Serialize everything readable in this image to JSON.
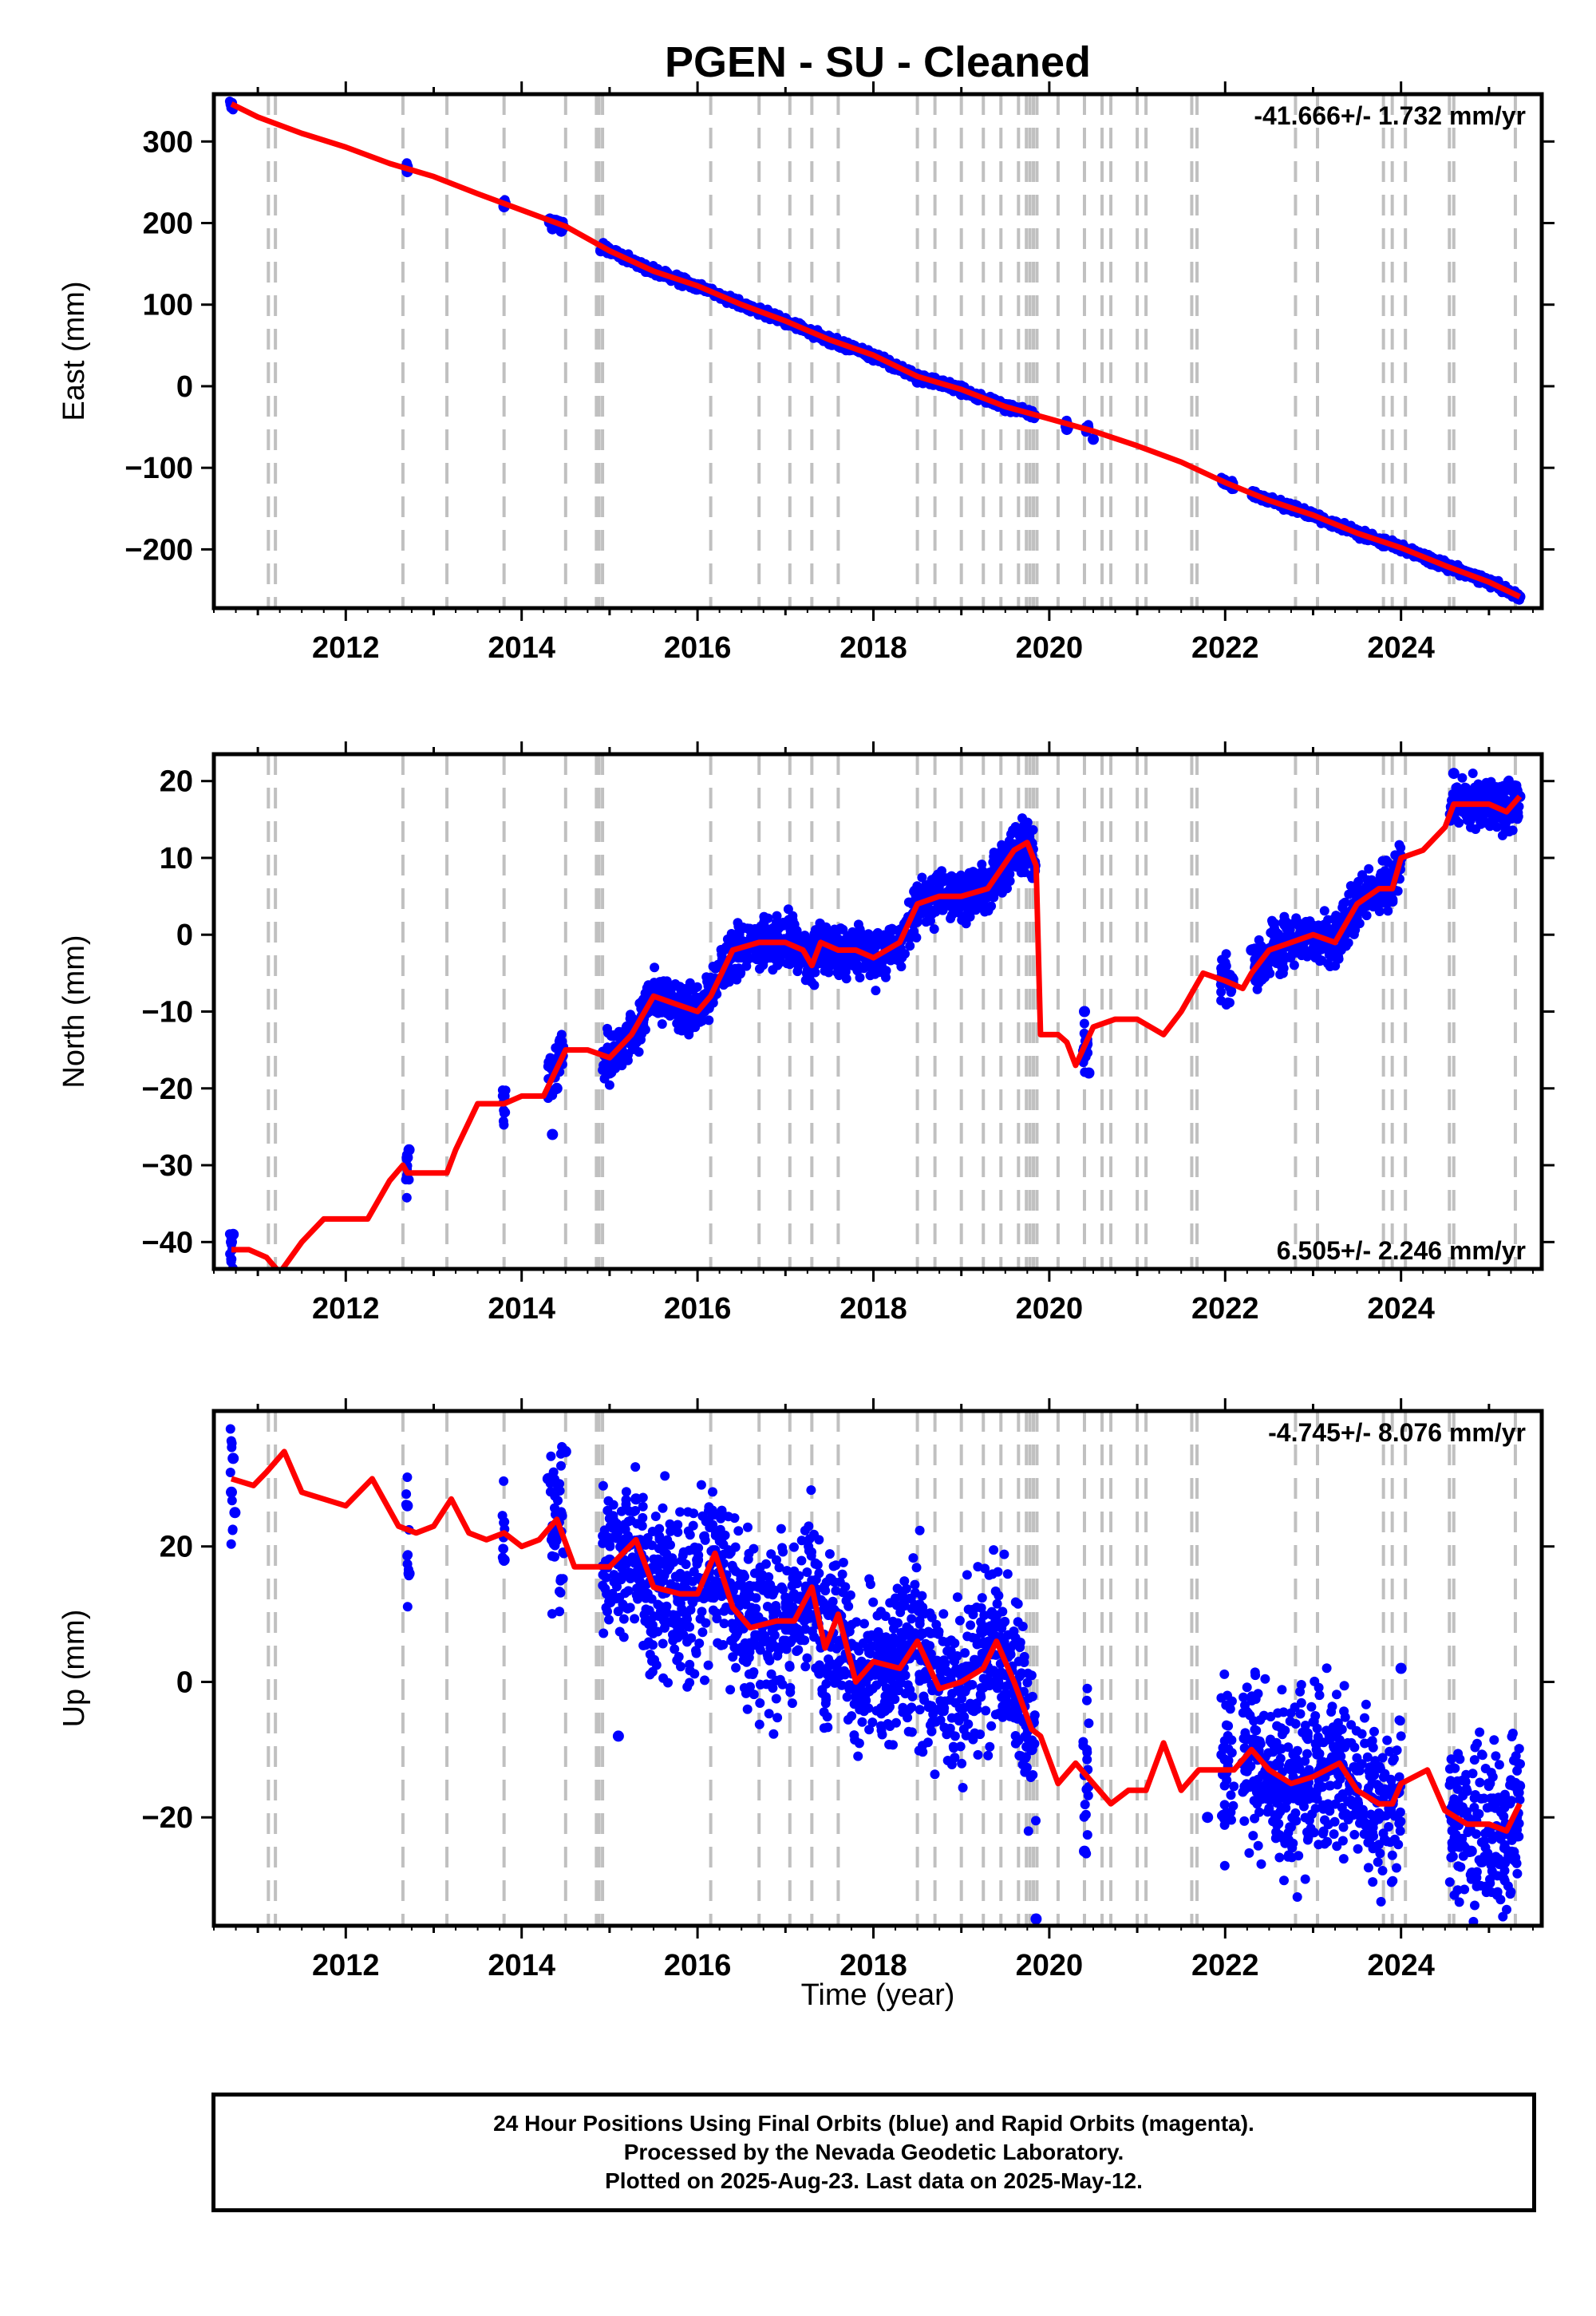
{
  "title": "PGEN  - SU - Cleaned",
  "x_axis_label": "Time (year)",
  "footer": {
    "line1": "24 Hour Positions Using Final Orbits (blue) and Rapid Orbits (magenta).",
    "line2": "Processed by the Nevada Geodetic Laboratory.",
    "line3": "Plotted on 2025-Aug-23. Last data on 2025-May-12."
  },
  "colors": {
    "data": "#0000ff",
    "fit": "#ff0000",
    "steps": "#c0c0c0",
    "axis": "#000000"
  },
  "chart_data": [
    {
      "type": "scatter",
      "component": "east",
      "ylabel": "East (mm)",
      "rate_label": "-41.666+/- 1.732 mm/yr",
      "xlim": [
        2010.5,
        2025.6
      ],
      "ylim": [
        -272,
        358
      ],
      "xticks": [
        2012,
        2014,
        2016,
        2018,
        2020,
        2022,
        2024
      ],
      "yticks": [
        -200,
        -100,
        0,
        100,
        200,
        300
      ],
      "ytick_labels": [
        "−200",
        "−100",
        "0",
        "100",
        "200",
        "300"
      ],
      "grid": false,
      "series": [
        {
          "role": "observed",
          "x": [
            2010.7,
            2012.7,
            2013.8,
            2014.35,
            2014.45,
            2014.9,
            2015.0,
            2015.5,
            2016.0,
            2016.5,
            2017.0,
            2017.5,
            2018.0,
            2018.5,
            2019.0,
            2019.5,
            2020.2,
            2020.5,
            2022.0,
            2022.5,
            2023.0,
            2023.5,
            2024.0,
            2024.5,
            2025.0,
            2025.35
          ],
          "y": [
            346,
            263,
            220,
            193,
            190,
            166,
            164,
            140,
            120,
            97,
            77,
            52,
            32,
            5,
            -10,
            -30,
            -53,
            -65,
            -120,
            -140,
            -160,
            -183,
            -202,
            -222,
            -240,
            -258
          ]
        },
        {
          "role": "model",
          "x": [
            2010.7,
            2011.0,
            2011.5,
            2012.0,
            2012.5,
            2013.0,
            2013.5,
            2014.0,
            2014.5,
            2015.0,
            2015.5,
            2016.0,
            2016.5,
            2017.0,
            2017.5,
            2018.0,
            2018.5,
            2019.0,
            2019.5,
            2020.0,
            2020.5,
            2021.0,
            2021.5,
            2022.0,
            2022.5,
            2023.0,
            2023.5,
            2024.0,
            2024.5,
            2025.0,
            2025.35
          ],
          "y": [
            346,
            330,
            310,
            293,
            273,
            257,
            236,
            216,
            196,
            166,
            141,
            123,
            100,
            80,
            57,
            38,
            12,
            -4,
            -25,
            -40,
            -55,
            -73,
            -93,
            -118,
            -140,
            -158,
            -180,
            -198,
            -220,
            -240,
            -258
          ]
        }
      ]
    },
    {
      "type": "scatter",
      "component": "north",
      "ylabel": "North (mm)",
      "rate_label": "6.505+/- 2.246 mm/yr",
      "xlim": [
        2010.5,
        2025.6
      ],
      "ylim": [
        -43.5,
        23.5
      ],
      "xticks": [
        2012,
        2014,
        2016,
        2018,
        2020,
        2022,
        2024
      ],
      "yticks": [
        -40,
        -30,
        -20,
        -10,
        0,
        10,
        20
      ],
      "ytick_labels": [
        "−40",
        "−30",
        "−20",
        "−10",
        "0",
        "10",
        "20"
      ],
      "grid": false,
      "series": [
        {
          "role": "observed",
          "x": [
            2010.7,
            2010.72,
            2012.7,
            2012.72,
            2013.8,
            2014.35,
            2014.4,
            2014.45,
            2015.0,
            2015.2,
            2015.5,
            2016.0,
            2016.5,
            2017.0,
            2017.5,
            2018.0,
            2018.5,
            2019.0,
            2019.5,
            2019.75,
            2020.4,
            2020.45,
            2022.0,
            2022.3,
            2022.6,
            2023.0,
            2023.5,
            2023.9,
            2024.0,
            2024.6,
            2024.7,
            2025.0,
            2025.35
          ],
          "y": [
            -40,
            -39,
            -29,
            -28,
            -21,
            -26,
            -20,
            -16,
            -18,
            -12,
            -7,
            -10,
            -1,
            -2,
            0,
            -2,
            4,
            4,
            7,
            13,
            -10,
            -18,
            -6,
            -2,
            0,
            0,
            4,
            8,
            10,
            21,
            17,
            16,
            18
          ]
        },
        {
          "role": "model",
          "x": [
            2010.7,
            2010.9,
            2011.1,
            2011.25,
            2011.5,
            2011.75,
            2012.0,
            2012.25,
            2012.5,
            2012.65,
            2012.7,
            2013.0,
            2013.15,
            2013.25,
            2013.5,
            2013.8,
            2014.0,
            2014.25,
            2014.5,
            2014.75,
            2015.0,
            2015.25,
            2015.5,
            2015.75,
            2016.0,
            2016.15,
            2016.4,
            2016.7,
            2017.0,
            2017.2,
            2017.3,
            2017.4,
            2017.6,
            2017.8,
            2018.0,
            2018.3,
            2018.5,
            2018.75,
            2019.0,
            2019.3,
            2019.6,
            2019.75,
            2019.85,
            2019.9,
            2020.1,
            2020.2,
            2020.3,
            2020.5,
            2020.75,
            2021.0,
            2021.3,
            2021.5,
            2021.75,
            2022.0,
            2022.2,
            2022.3,
            2022.5,
            2022.75,
            2023.0,
            2023.25,
            2023.5,
            2023.75,
            2023.9,
            2024.0,
            2024.25,
            2024.5,
            2024.6,
            2024.8,
            2025.0,
            2025.2,
            2025.35
          ],
          "y": [
            -41,
            -41,
            -42,
            -44,
            -40,
            -37,
            -37,
            -37,
            -32,
            -30,
            -31,
            -31,
            -31,
            -28,
            -22,
            -22,
            -21,
            -21,
            -15,
            -15,
            -16,
            -13,
            -8,
            -9,
            -10,
            -8,
            -2,
            -1,
            -1,
            -2,
            -4,
            -1,
            -2,
            -2,
            -3,
            -1,
            4,
            5,
            5,
            6,
            11,
            12,
            9,
            -13,
            -13,
            -14,
            -17,
            -12,
            -11,
            -11,
            -13,
            -10,
            -5,
            -6,
            -7,
            -5,
            -2,
            -1,
            0,
            -1,
            4,
            6,
            6,
            10,
            11,
            14,
            17,
            17,
            17,
            16,
            18
          ]
        }
      ]
    },
    {
      "type": "scatter",
      "component": "up",
      "ylabel": "Up (mm)",
      "rate_label": "-4.745+/- 8.076 mm/yr",
      "xlim": [
        2010.5,
        2025.6
      ],
      "ylim": [
        -36,
        40
      ],
      "xticks": [
        2012,
        2014,
        2016,
        2018,
        2020,
        2022,
        2024
      ],
      "yticks": [
        -20,
        0,
        20
      ],
      "ytick_labels": [
        "−20",
        "0",
        "20"
      ],
      "grid": false,
      "series": [
        {
          "role": "observed",
          "x": [
            2010.7,
            2010.72,
            2010.74,
            2012.7,
            2012.72,
            2013.8,
            2014.3,
            2014.4,
            2014.5,
            2015.0,
            2015.1,
            2015.3,
            2015.6,
            2016.0,
            2016.3,
            2016.6,
            2017.0,
            2017.4,
            2017.8,
            2018.2,
            2018.5,
            2018.8,
            2019.2,
            2019.5,
            2019.8,
            2019.85,
            2020.4,
            2021.8,
            2022.2,
            2022.5,
            2023.0,
            2023.5,
            2023.9,
            2024.0,
            2024.6,
            2024.8,
            2025.0,
            2025.3
          ],
          "y": [
            28,
            33,
            25,
            26,
            16,
            18,
            30,
            22,
            34,
            18,
            -8,
            27,
            15,
            18,
            14,
            10,
            6,
            12,
            2,
            5,
            4,
            0,
            3,
            -2,
            -10,
            -35,
            -25,
            -20,
            -12,
            -15,
            -17,
            -13,
            -18,
            2,
            -18,
            -25,
            -22,
            -15
          ]
        },
        {
          "role": "model",
          "x": [
            2010.7,
            2010.95,
            2011.1,
            2011.3,
            2011.5,
            2011.75,
            2012.0,
            2012.3,
            2012.6,
            2012.8,
            2013.0,
            2013.2,
            2013.4,
            2013.6,
            2013.8,
            2014.0,
            2014.2,
            2014.4,
            2014.6,
            2014.8,
            2015.0,
            2015.3,
            2015.5,
            2015.8,
            2016.0,
            2016.2,
            2016.4,
            2016.6,
            2016.9,
            2017.1,
            2017.3,
            2017.45,
            2017.6,
            2017.8,
            2018.0,
            2018.3,
            2018.5,
            2018.75,
            2019.0,
            2019.25,
            2019.4,
            2019.6,
            2019.8,
            2019.9,
            2020.1,
            2020.3,
            2020.5,
            2020.7,
            2020.9,
            2021.1,
            2021.3,
            2021.5,
            2021.7,
            2021.9,
            2022.1,
            2022.3,
            2022.5,
            2022.75,
            2023.0,
            2023.3,
            2023.5,
            2023.75,
            2023.9,
            2024.0,
            2024.3,
            2024.5,
            2024.75,
            2025.0,
            2025.2,
            2025.35
          ],
          "y": [
            30,
            29,
            31,
            34,
            28,
            27,
            26,
            30,
            23,
            22,
            23,
            27,
            22,
            21,
            22,
            20,
            21,
            24,
            17,
            17,
            17,
            21,
            14,
            13,
            13,
            19,
            11,
            8,
            9,
            9,
            14,
            5,
            10,
            0,
            3,
            2,
            6,
            -1,
            0,
            2,
            6,
            0,
            -7,
            -8,
            -15,
            -12,
            -15,
            -18,
            -16,
            -16,
            -9,
            -16,
            -13,
            -13,
            -13,
            -10,
            -13,
            -15,
            -14,
            -12,
            -16,
            -18,
            -18,
            -15,
            -13,
            -19,
            -21,
            -21,
            -22,
            -18
          ]
        }
      ]
    }
  ]
}
